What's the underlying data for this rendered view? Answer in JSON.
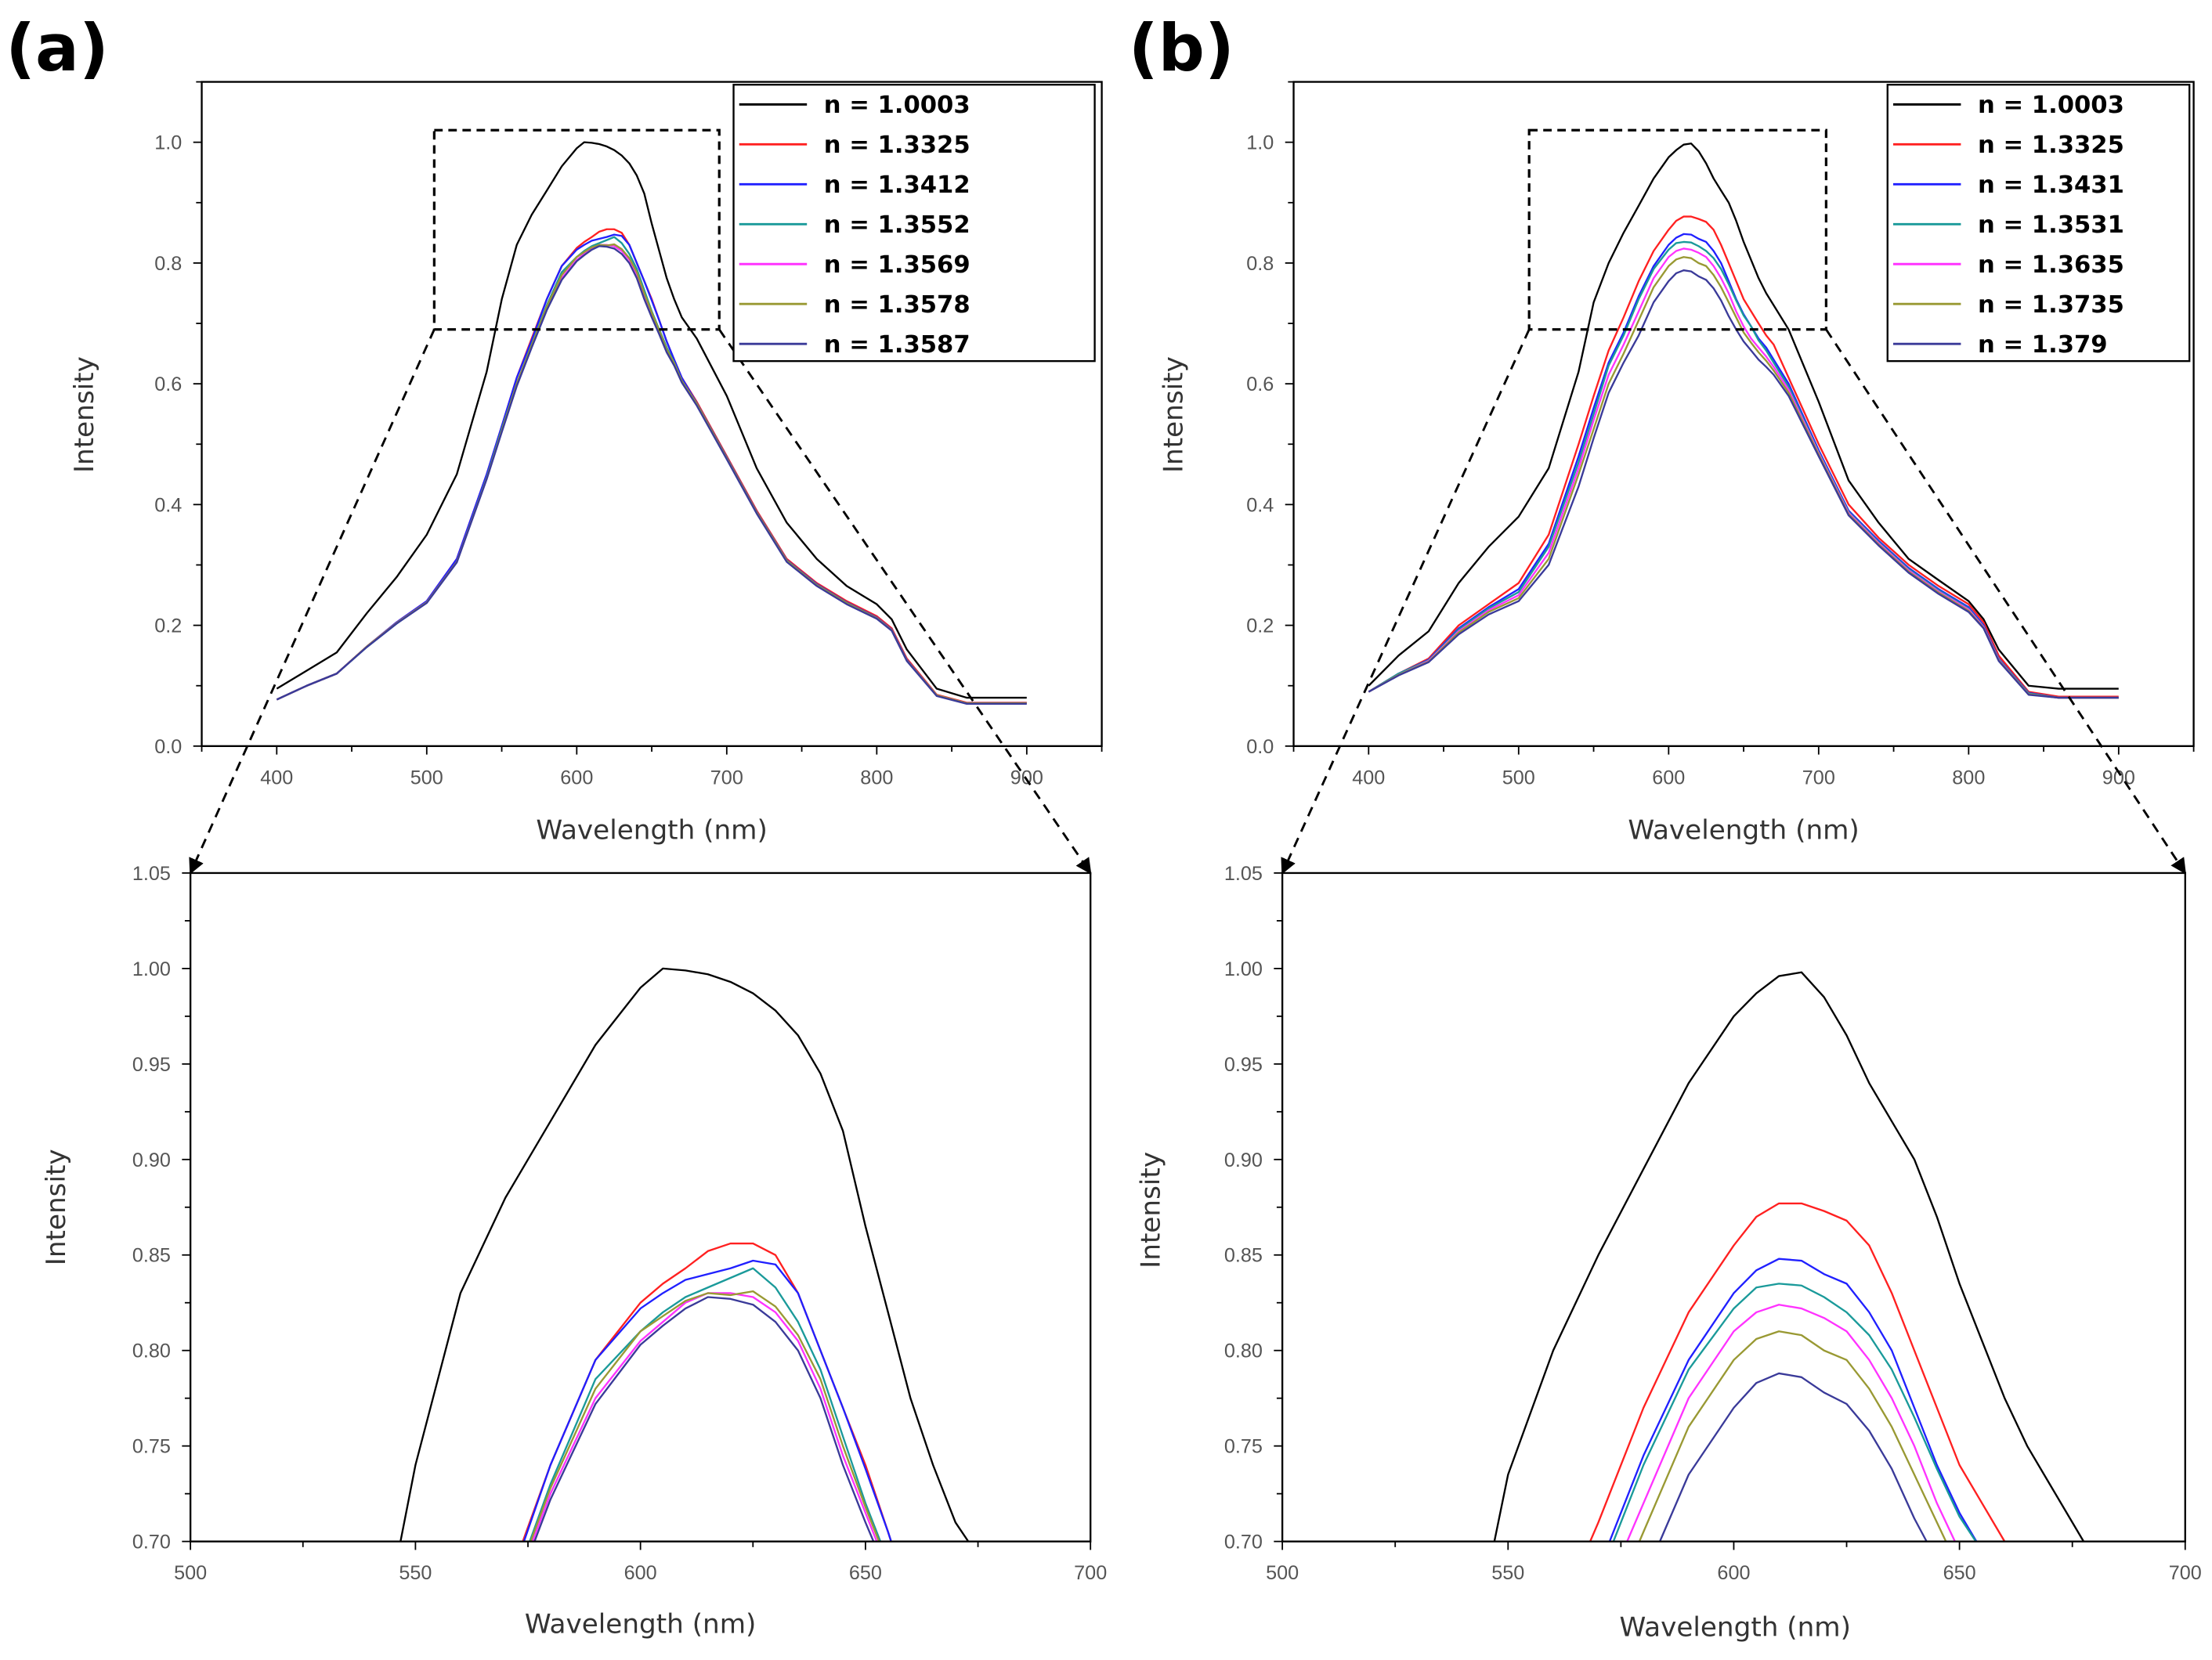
{
  "chart_data": [
    {
      "panel": "(a)",
      "type": "line",
      "xlabel": "Wavelength (nm)",
      "ylabel": "Intensity",
      "main_axes": {
        "xlim": [
          350,
          950
        ],
        "ylim": [
          0,
          1.1
        ],
        "xticks": [
          400,
          500,
          600,
          700,
          800,
          900
        ],
        "xminor": 50,
        "yticks": [
          0.0,
          0.2,
          0.4,
          0.6,
          0.8,
          1.0
        ],
        "yminor": 0.1,
        "ydecimals": 1
      },
      "zoom_axes": {
        "xlim": [
          500,
          700
        ],
        "ylim": [
          0.7,
          1.05
        ],
        "xticks": [
          500,
          550,
          600,
          650,
          700
        ],
        "xminor": 25,
        "yticks": [
          0.7,
          0.75,
          0.8,
          0.85,
          0.9,
          0.95,
          1.0,
          1.05
        ],
        "yminor": 0.025,
        "ydecimals": 2
      },
      "zoom_region": {
        "x": [
          505,
          695
        ],
        "y": [
          0.69,
          1.02
        ]
      },
      "legend_position": "top-right",
      "x": [
        400,
        420,
        440,
        460,
        480,
        500,
        520,
        540,
        550,
        560,
        570,
        580,
        590,
        600,
        605,
        610,
        615,
        620,
        625,
        630,
        635,
        640,
        645,
        650,
        655,
        660,
        665,
        670,
        680,
        700,
        720,
        740,
        760,
        780,
        800,
        810,
        820,
        840,
        860,
        900
      ],
      "series": [
        {
          "name": "n = 1.0003",
          "color": "#000000",
          "values": [
            0.095,
            0.125,
            0.155,
            0.22,
            0.28,
            0.35,
            0.45,
            0.62,
            0.74,
            0.83,
            0.88,
            0.92,
            0.96,
            0.99,
            1.0,
            0.999,
            0.997,
            0.993,
            0.987,
            0.978,
            0.965,
            0.945,
            0.915,
            0.865,
            0.82,
            0.775,
            0.74,
            0.71,
            0.675,
            0.58,
            0.46,
            0.37,
            0.31,
            0.265,
            0.235,
            0.21,
            0.16,
            0.095,
            0.08,
            0.08
          ]
        },
        {
          "name": "n = 1.3325",
          "color": "#ff2020",
          "values": [
            0.077,
            0.1,
            0.12,
            0.165,
            0.205,
            0.24,
            0.31,
            0.45,
            0.53,
            0.61,
            0.675,
            0.74,
            0.795,
            0.825,
            0.835,
            0.843,
            0.852,
            0.856,
            0.856,
            0.85,
            0.83,
            0.8,
            0.77,
            0.74,
            0.705,
            0.67,
            0.64,
            0.61,
            0.57,
            0.48,
            0.39,
            0.31,
            0.27,
            0.24,
            0.215,
            0.195,
            0.145,
            0.085,
            0.072,
            0.072
          ]
        },
        {
          "name": "n = 1.3412",
          "color": "#2020ff",
          "values": [
            0.077,
            0.1,
            0.12,
            0.165,
            0.205,
            0.24,
            0.31,
            0.45,
            0.53,
            0.61,
            0.672,
            0.74,
            0.795,
            0.822,
            0.83,
            0.837,
            0.84,
            0.843,
            0.847,
            0.845,
            0.83,
            0.8,
            0.77,
            0.738,
            0.705,
            0.67,
            0.64,
            0.61,
            0.568,
            0.478,
            0.388,
            0.308,
            0.268,
            0.238,
            0.213,
            0.193,
            0.143,
            0.084,
            0.071,
            0.071
          ]
        },
        {
          "name": "n = 1.3552",
          "color": "#1a9a9a",
          "values": [
            0.077,
            0.1,
            0.12,
            0.164,
            0.203,
            0.238,
            0.305,
            0.445,
            0.525,
            0.6,
            0.665,
            0.73,
            0.785,
            0.81,
            0.82,
            0.828,
            0.833,
            0.838,
            0.843,
            0.833,
            0.815,
            0.79,
            0.755,
            0.72,
            0.69,
            0.66,
            0.635,
            0.605,
            0.566,
            0.476,
            0.386,
            0.306,
            0.266,
            0.236,
            0.212,
            0.192,
            0.142,
            0.084,
            0.071,
            0.071
          ]
        },
        {
          "name": "n = 1.3569",
          "color": "#ff33ff",
          "values": [
            0.077,
            0.1,
            0.12,
            0.165,
            0.204,
            0.238,
            0.305,
            0.443,
            0.522,
            0.598,
            0.662,
            0.725,
            0.775,
            0.805,
            0.815,
            0.825,
            0.83,
            0.83,
            0.828,
            0.82,
            0.805,
            0.78,
            0.745,
            0.715,
            0.685,
            0.655,
            0.632,
            0.603,
            0.565,
            0.476,
            0.386,
            0.306,
            0.266,
            0.236,
            0.212,
            0.192,
            0.142,
            0.084,
            0.071,
            0.071
          ]
        },
        {
          "name": "n = 1.3578",
          "color": "#999933",
          "values": [
            0.077,
            0.1,
            0.12,
            0.165,
            0.204,
            0.238,
            0.305,
            0.443,
            0.523,
            0.6,
            0.664,
            0.728,
            0.78,
            0.81,
            0.818,
            0.826,
            0.83,
            0.829,
            0.831,
            0.823,
            0.808,
            0.785,
            0.75,
            0.718,
            0.688,
            0.657,
            0.634,
            0.605,
            0.567,
            0.477,
            0.387,
            0.307,
            0.267,
            0.237,
            0.212,
            0.192,
            0.142,
            0.084,
            0.071,
            0.071
          ]
        },
        {
          "name": "n = 1.3587",
          "color": "#3a3a99",
          "values": [
            0.077,
            0.1,
            0.12,
            0.164,
            0.203,
            0.237,
            0.304,
            0.442,
            0.52,
            0.596,
            0.66,
            0.722,
            0.772,
            0.803,
            0.813,
            0.822,
            0.828,
            0.827,
            0.824,
            0.815,
            0.8,
            0.775,
            0.74,
            0.71,
            0.682,
            0.652,
            0.63,
            0.602,
            0.564,
            0.475,
            0.385,
            0.305,
            0.265,
            0.235,
            0.211,
            0.191,
            0.141,
            0.083,
            0.07,
            0.07
          ]
        }
      ]
    },
    {
      "panel": "(b)",
      "type": "line",
      "xlabel": "Wavelength (nm)",
      "ylabel": "Intensity",
      "main_axes": {
        "xlim": [
          350,
          950
        ],
        "ylim": [
          0,
          1.1
        ],
        "xticks": [
          400,
          500,
          600,
          700,
          800,
          900
        ],
        "xminor": 50,
        "yticks": [
          0.0,
          0.2,
          0.4,
          0.6,
          0.8,
          1.0
        ],
        "yminor": 0.1,
        "ydecimals": 1
      },
      "zoom_axes": {
        "xlim": [
          500,
          700
        ],
        "ylim": [
          0.7,
          1.05
        ],
        "xticks": [
          500,
          550,
          600,
          650,
          700
        ],
        "xminor": 25,
        "yticks": [
          0.7,
          0.75,
          0.8,
          0.85,
          0.9,
          0.95,
          1.0,
          1.05
        ],
        "yminor": 0.025,
        "ydecimals": 2
      },
      "zoom_region": {
        "x": [
          507,
          705
        ],
        "y": [
          0.69,
          1.02
        ]
      },
      "legend_position": "top-right",
      "x": [
        400,
        420,
        440,
        460,
        480,
        500,
        520,
        540,
        550,
        560,
        570,
        580,
        590,
        600,
        605,
        610,
        615,
        620,
        625,
        630,
        635,
        640,
        645,
        650,
        655,
        660,
        665,
        670,
        680,
        700,
        720,
        740,
        760,
        780,
        800,
        810,
        820,
        840,
        860,
        900
      ],
      "series": [
        {
          "name": "n = 1.0003",
          "color": "#000000",
          "values": [
            0.1,
            0.15,
            0.19,
            0.27,
            0.33,
            0.38,
            0.46,
            0.62,
            0.735,
            0.8,
            0.85,
            0.895,
            0.94,
            0.975,
            0.987,
            0.996,
            0.998,
            0.985,
            0.965,
            0.94,
            0.92,
            0.9,
            0.87,
            0.835,
            0.805,
            0.775,
            0.75,
            0.73,
            0.69,
            0.57,
            0.44,
            0.37,
            0.31,
            0.275,
            0.24,
            0.21,
            0.16,
            0.1,
            0.095,
            0.095
          ]
        },
        {
          "name": "n = 1.3325",
          "color": "#ff2020",
          "values": [
            0.09,
            0.12,
            0.145,
            0.2,
            0.235,
            0.27,
            0.35,
            0.5,
            0.58,
            0.655,
            0.71,
            0.77,
            0.82,
            0.855,
            0.87,
            0.877,
            0.877,
            0.873,
            0.868,
            0.855,
            0.83,
            0.8,
            0.77,
            0.74,
            0.72,
            0.7,
            0.68,
            0.665,
            0.61,
            0.5,
            0.4,
            0.345,
            0.3,
            0.265,
            0.235,
            0.205,
            0.15,
            0.09,
            0.082,
            0.082
          ]
        },
        {
          "name": "n = 1.3431",
          "color": "#2020ff",
          "values": [
            0.09,
            0.12,
            0.143,
            0.195,
            0.23,
            0.26,
            0.335,
            0.48,
            0.56,
            0.635,
            0.685,
            0.745,
            0.795,
            0.83,
            0.842,
            0.848,
            0.847,
            0.84,
            0.835,
            0.82,
            0.8,
            0.77,
            0.74,
            0.715,
            0.695,
            0.675,
            0.66,
            0.64,
            0.6,
            0.49,
            0.39,
            0.34,
            0.295,
            0.26,
            0.23,
            0.2,
            0.145,
            0.088,
            0.08,
            0.08
          ]
        },
        {
          "name": "n = 1.3531",
          "color": "#1a9a9a",
          "values": [
            0.09,
            0.12,
            0.142,
            0.193,
            0.228,
            0.255,
            0.33,
            0.47,
            0.55,
            0.63,
            0.68,
            0.74,
            0.79,
            0.822,
            0.833,
            0.835,
            0.834,
            0.828,
            0.82,
            0.808,
            0.79,
            0.765,
            0.738,
            0.713,
            0.695,
            0.672,
            0.655,
            0.635,
            0.595,
            0.487,
            0.388,
            0.338,
            0.293,
            0.258,
            0.228,
            0.198,
            0.144,
            0.087,
            0.08,
            0.08
          ]
        },
        {
          "name": "n = 1.3635",
          "color": "#ff33ff",
          "values": [
            0.09,
            0.118,
            0.141,
            0.19,
            0.225,
            0.25,
            0.32,
            0.46,
            0.54,
            0.615,
            0.665,
            0.72,
            0.775,
            0.81,
            0.82,
            0.824,
            0.822,
            0.817,
            0.81,
            0.795,
            0.775,
            0.75,
            0.72,
            0.695,
            0.675,
            0.66,
            0.645,
            0.628,
            0.59,
            0.485,
            0.386,
            0.336,
            0.291,
            0.256,
            0.226,
            0.197,
            0.143,
            0.086,
            0.08,
            0.08
          ]
        },
        {
          "name": "n = 1.3735",
          "color": "#999933",
          "values": [
            0.09,
            0.118,
            0.14,
            0.188,
            0.222,
            0.245,
            0.31,
            0.45,
            0.525,
            0.6,
            0.65,
            0.705,
            0.76,
            0.795,
            0.806,
            0.81,
            0.808,
            0.8,
            0.795,
            0.78,
            0.76,
            0.735,
            0.71,
            0.685,
            0.668,
            0.652,
            0.638,
            0.622,
            0.585,
            0.483,
            0.384,
            0.334,
            0.289,
            0.254,
            0.224,
            0.196,
            0.142,
            0.086,
            0.08,
            0.08
          ]
        },
        {
          "name": "n = 1.379",
          "color": "#3a3a99",
          "values": [
            0.09,
            0.117,
            0.139,
            0.185,
            0.218,
            0.24,
            0.3,
            0.43,
            0.51,
            0.585,
            0.635,
            0.68,
            0.735,
            0.77,
            0.783,
            0.788,
            0.786,
            0.778,
            0.772,
            0.758,
            0.738,
            0.712,
            0.69,
            0.67,
            0.655,
            0.64,
            0.628,
            0.615,
            0.58,
            0.48,
            0.382,
            0.332,
            0.287,
            0.252,
            0.222,
            0.195,
            0.141,
            0.085,
            0.08,
            0.08
          ]
        }
      ]
    }
  ]
}
